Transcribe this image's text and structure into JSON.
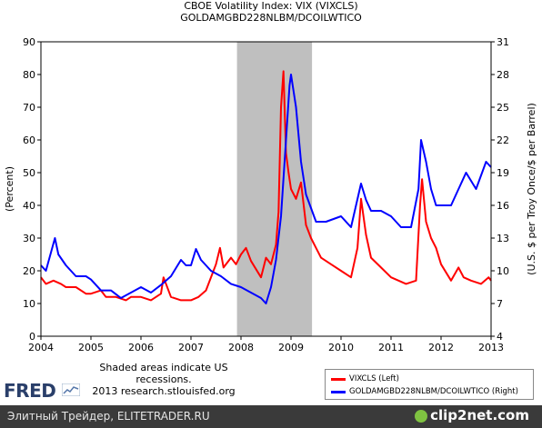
{
  "chart_data": {
    "type": "line",
    "title": "CBOE Volatility Index: VIX (VIXCLS)",
    "subtitle": "GOLDAMGBD228NLBM/DCOILWTICO",
    "xlabel": "",
    "ylabel_left": "(Percent)",
    "ylabel_right": "(U.S. $ per Troy Once/$ per Barrel)",
    "x_ticks": [
      "2004",
      "2005",
      "2006",
      "2007",
      "2008",
      "2009",
      "2010",
      "2011",
      "2012",
      "2013"
    ],
    "xlim": [
      2004,
      2013
    ],
    "ylim_left": [
      0,
      90
    ],
    "ylim_right": [
      4,
      31
    ],
    "y_ticks_left": [
      "0",
      "10",
      "20",
      "30",
      "40",
      "50",
      "60",
      "70",
      "80",
      "90"
    ],
    "y_ticks_right": [
      "4",
      "7",
      "10",
      "13",
      "16",
      "19",
      "22",
      "25",
      "28",
      "31"
    ],
    "grid": false,
    "recession": {
      "start": 2007.92,
      "end": 2009.42
    },
    "series": [
      {
        "name": "VIXCLS (Left)",
        "axis": "left",
        "color": "#ff0000",
        "x": [
          2004.0,
          2004.1,
          2004.25,
          2004.4,
          2004.5,
          2004.7,
          2004.9,
          2005.0,
          2005.2,
          2005.3,
          2005.5,
          2005.7,
          2005.8,
          2006.0,
          2006.2,
          2006.4,
          2006.45,
          2006.6,
          2006.8,
          2007.0,
          2007.15,
          2007.3,
          2007.5,
          2007.58,
          2007.65,
          2007.8,
          2007.9,
          2008.0,
          2008.1,
          2008.2,
          2008.4,
          2008.5,
          2008.6,
          2008.7,
          2008.75,
          2008.8,
          2008.85,
          2008.9,
          2008.95,
          2009.0,
          2009.1,
          2009.2,
          2009.3,
          2009.4,
          2009.5,
          2009.6,
          2009.8,
          2010.0,
          2010.2,
          2010.33,
          2010.4,
          2010.5,
          2010.6,
          2010.8,
          2011.0,
          2011.3,
          2011.5,
          2011.58,
          2011.62,
          2011.7,
          2011.8,
          2011.9,
          2012.0,
          2012.2,
          2012.35,
          2012.45,
          2012.6,
          2012.8,
          2012.95,
          2013.0
        ],
        "values": [
          18,
          16,
          17,
          16,
          15,
          15,
          13,
          13,
          14,
          12,
          12,
          11,
          12,
          12,
          11,
          13,
          18,
          12,
          11,
          11,
          12,
          14,
          22,
          27,
          21,
          24,
          22,
          25,
          27,
          23,
          18,
          24,
          22,
          28,
          38,
          70,
          81,
          56,
          50,
          45,
          42,
          47,
          34,
          30,
          27,
          24,
          22,
          20,
          18,
          27,
          42,
          31,
          24,
          21,
          18,
          16,
          17,
          40,
          48,
          35,
          30,
          27,
          22,
          17,
          21,
          18,
          17,
          16,
          18,
          17
        ]
      },
      {
        "name": "GOLDAMGBD228NLBM/DCOILWTICO (Right)",
        "axis": "right",
        "color": "#0000ff",
        "x": [
          2004.0,
          2004.1,
          2004.28,
          2004.35,
          2004.5,
          2004.7,
          2004.9,
          2005.0,
          2005.2,
          2005.4,
          2005.6,
          2005.8,
          2006.0,
          2006.2,
          2006.4,
          2006.6,
          2006.8,
          2006.9,
          2007.0,
          2007.1,
          2007.2,
          2007.4,
          2007.6,
          2007.8,
          2008.0,
          2008.2,
          2008.4,
          2008.5,
          2008.6,
          2008.7,
          2008.8,
          2008.9,
          2008.97,
          2009.0,
          2009.1,
          2009.2,
          2009.3,
          2009.5,
          2009.7,
          2010.0,
          2010.2,
          2010.4,
          2010.5,
          2010.6,
          2010.8,
          2011.0,
          2011.2,
          2011.4,
          2011.55,
          2011.6,
          2011.7,
          2011.8,
          2011.9,
          2012.0,
          2012.2,
          2012.4,
          2012.5,
          2012.7,
          2012.9,
          2013.0
        ],
        "values": [
          10.5,
          10.0,
          13.0,
          11.5,
          10.5,
          9.5,
          9.5,
          9.2,
          8.2,
          8.2,
          7.5,
          8.0,
          8.5,
          8.0,
          8.7,
          9.5,
          11.0,
          10.5,
          10.5,
          12.0,
          11.0,
          10.0,
          9.5,
          8.8,
          8.5,
          8.0,
          7.5,
          7.0,
          8.5,
          11.0,
          15.0,
          22.0,
          27.0,
          28.0,
          25.0,
          20.0,
          17.0,
          14.5,
          14.5,
          15.0,
          14.0,
          18.0,
          16.5,
          15.5,
          15.5,
          15.0,
          14.0,
          14.0,
          17.5,
          22.0,
          20.0,
          17.5,
          16.0,
          16.0,
          16.0,
          18.0,
          19.0,
          17.5,
          20.0,
          19.5
        ]
      }
    ]
  },
  "note": "Shaded areas indicate US recessions.",
  "note_line2": "2013 research.stlouisfed.org",
  "logo_text": "FRED",
  "legend": {
    "vix": "VIXCLS (Left)",
    "ratio": "GOLDAMGBD228NLBM/DCOILWTICO (Right)"
  },
  "footer": {
    "left_text": "Элитный Трейдер, ELITETRADER.RU",
    "brand": "clip2net.com"
  }
}
